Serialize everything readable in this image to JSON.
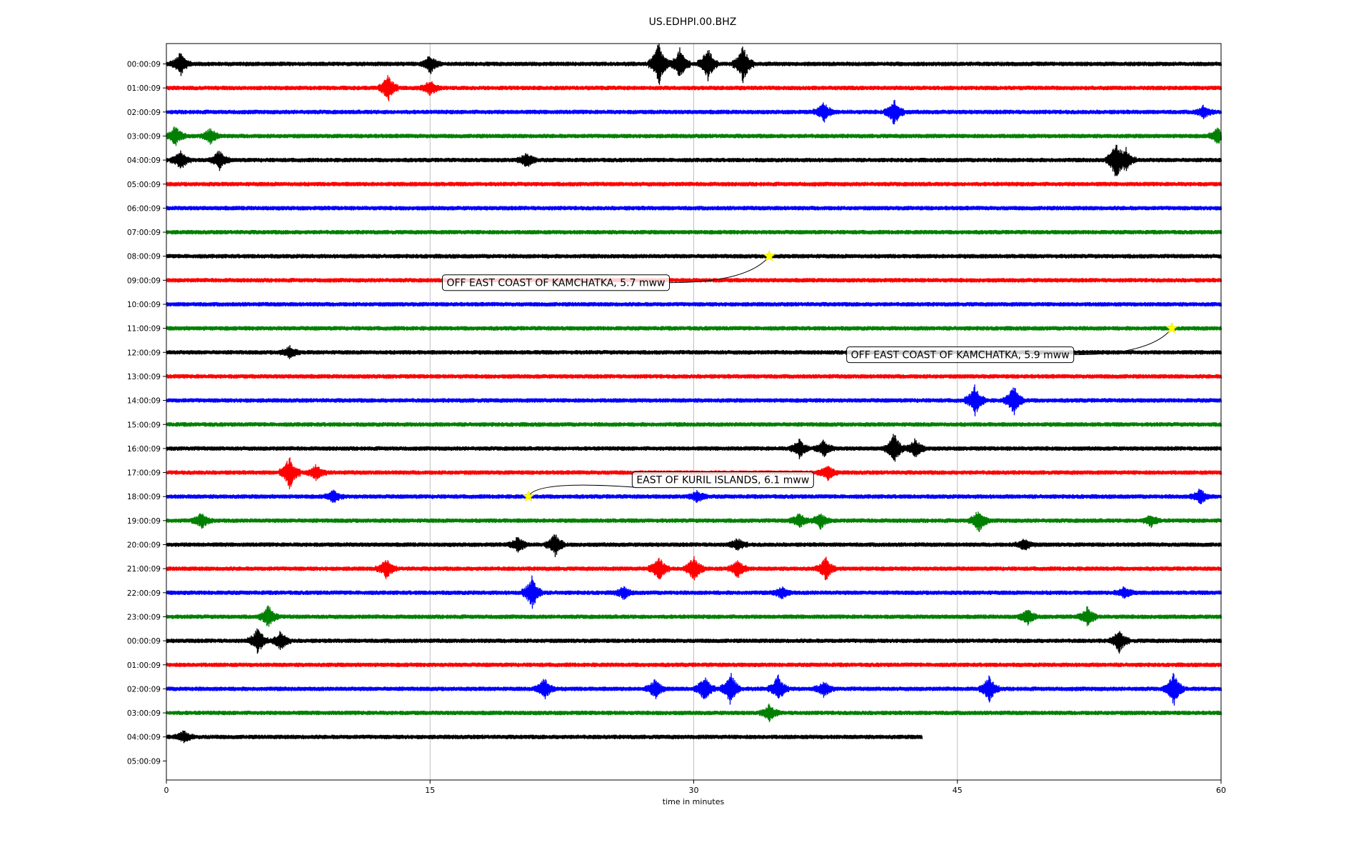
{
  "chart_data": {
    "type": "line",
    "title": "US.EDHPI.00.BHZ",
    "xlabel": "time in minutes",
    "ylabel": "",
    "xlim": [
      0,
      60
    ],
    "x_ticks": [
      0,
      15,
      30,
      45,
      60
    ],
    "grid": "vertical",
    "trace_colors": [
      "#000000",
      "#ff0000",
      "#0000ff",
      "#008000"
    ],
    "rows": [
      {
        "label": "00:00:09",
        "end_minute": 60
      },
      {
        "label": "01:00:09",
        "end_minute": 60
      },
      {
        "label": "02:00:09",
        "end_minute": 60
      },
      {
        "label": "03:00:09",
        "end_minute": 60
      },
      {
        "label": "04:00:09",
        "end_minute": 60
      },
      {
        "label": "05:00:09",
        "end_minute": 60
      },
      {
        "label": "06:00:09",
        "end_minute": 60
      },
      {
        "label": "07:00:09",
        "end_minute": 60
      },
      {
        "label": "08:00:09",
        "end_minute": 60
      },
      {
        "label": "09:00:09",
        "end_minute": 60
      },
      {
        "label": "10:00:09",
        "end_minute": 60
      },
      {
        "label": "11:00:09",
        "end_minute": 60
      },
      {
        "label": "12:00:09",
        "end_minute": 60
      },
      {
        "label": "13:00:09",
        "end_minute": 60
      },
      {
        "label": "14:00:09",
        "end_minute": 60
      },
      {
        "label": "15:00:09",
        "end_minute": 60
      },
      {
        "label": "16:00:09",
        "end_minute": 60
      },
      {
        "label": "17:00:09",
        "end_minute": 60
      },
      {
        "label": "18:00:09",
        "end_minute": 60
      },
      {
        "label": "19:00:09",
        "end_minute": 60
      },
      {
        "label": "20:00:09",
        "end_minute": 60
      },
      {
        "label": "21:00:09",
        "end_minute": 60
      },
      {
        "label": "22:00:09",
        "end_minute": 60
      },
      {
        "label": "23:00:09",
        "end_minute": 60
      },
      {
        "label": "00:00:09",
        "end_minute": 60
      },
      {
        "label": "01:00:09",
        "end_minute": 60
      },
      {
        "label": "02:00:09",
        "end_minute": 60
      },
      {
        "label": "03:00:09",
        "end_minute": 60
      },
      {
        "label": "04:00:09",
        "end_minute": 43
      },
      {
        "label": "05:00:09",
        "end_minute": 0
      }
    ],
    "bursts": [
      {
        "row": 0,
        "minute": 0.8,
        "amp": 0.6
      },
      {
        "row": 0,
        "minute": 15,
        "amp": 0.5
      },
      {
        "row": 0,
        "minute": 28,
        "amp": 1.2
      },
      {
        "row": 0,
        "minute": 29.2,
        "amp": 0.8
      },
      {
        "row": 0,
        "minute": 30.8,
        "amp": 0.9
      },
      {
        "row": 0,
        "minute": 32.8,
        "amp": 1.0
      },
      {
        "row": 1,
        "minute": 12.6,
        "amp": 0.7
      },
      {
        "row": 1,
        "minute": 15,
        "amp": 0.4
      },
      {
        "row": 2,
        "minute": 37.4,
        "amp": 0.5
      },
      {
        "row": 2,
        "minute": 41.4,
        "amp": 0.7
      },
      {
        "row": 2,
        "minute": 59,
        "amp": 0.3
      },
      {
        "row": 3,
        "minute": 0.5,
        "amp": 0.5
      },
      {
        "row": 3,
        "minute": 2.5,
        "amp": 0.4
      },
      {
        "row": 3,
        "minute": 59.8,
        "amp": 0.4
      },
      {
        "row": 4,
        "minute": 0.8,
        "amp": 0.5
      },
      {
        "row": 4,
        "minute": 3,
        "amp": 0.5
      },
      {
        "row": 4,
        "minute": 20.5,
        "amp": 0.4
      },
      {
        "row": 4,
        "minute": 54,
        "amp": 1.0
      },
      {
        "row": 4,
        "minute": 54.6,
        "amp": 0.5
      },
      {
        "row": 12,
        "minute": 7,
        "amp": 0.3
      },
      {
        "row": 14,
        "minute": 46,
        "amp": 0.8
      },
      {
        "row": 14,
        "minute": 48.2,
        "amp": 0.8
      },
      {
        "row": 16,
        "minute": 36,
        "amp": 0.5
      },
      {
        "row": 16,
        "minute": 37.4,
        "amp": 0.4
      },
      {
        "row": 16,
        "minute": 41.4,
        "amp": 0.8
      },
      {
        "row": 16,
        "minute": 42.6,
        "amp": 0.5
      },
      {
        "row": 17,
        "minute": 7,
        "amp": 0.9
      },
      {
        "row": 17,
        "minute": 8.5,
        "amp": 0.4
      },
      {
        "row": 17,
        "minute": 37.6,
        "amp": 0.4
      },
      {
        "row": 18,
        "minute": 9.5,
        "amp": 0.3
      },
      {
        "row": 18,
        "minute": 30.2,
        "amp": 0.3
      },
      {
        "row": 18,
        "minute": 58.8,
        "amp": 0.4
      },
      {
        "row": 19,
        "minute": 2,
        "amp": 0.4
      },
      {
        "row": 19,
        "minute": 36,
        "amp": 0.4
      },
      {
        "row": 19,
        "minute": 37.2,
        "amp": 0.4
      },
      {
        "row": 19,
        "minute": 46.2,
        "amp": 0.6
      },
      {
        "row": 19,
        "minute": 56,
        "amp": 0.3
      },
      {
        "row": 20,
        "minute": 20,
        "amp": 0.4
      },
      {
        "row": 20,
        "minute": 22.1,
        "amp": 0.6
      },
      {
        "row": 20,
        "minute": 32.5,
        "amp": 0.3
      },
      {
        "row": 20,
        "minute": 48.8,
        "amp": 0.3
      },
      {
        "row": 21,
        "minute": 12.5,
        "amp": 0.5
      },
      {
        "row": 21,
        "minute": 28,
        "amp": 0.7
      },
      {
        "row": 21,
        "minute": 30,
        "amp": 0.7
      },
      {
        "row": 21,
        "minute": 32.5,
        "amp": 0.5
      },
      {
        "row": 21,
        "minute": 37.5,
        "amp": 0.6
      },
      {
        "row": 22,
        "minute": 20.8,
        "amp": 0.9
      },
      {
        "row": 22,
        "minute": 26,
        "amp": 0.3
      },
      {
        "row": 22,
        "minute": 35,
        "amp": 0.3
      },
      {
        "row": 22,
        "minute": 54.5,
        "amp": 0.3
      },
      {
        "row": 23,
        "minute": 5.8,
        "amp": 0.6
      },
      {
        "row": 23,
        "minute": 49,
        "amp": 0.4
      },
      {
        "row": 23,
        "minute": 52.4,
        "amp": 0.5
      },
      {
        "row": 24,
        "minute": 5.2,
        "amp": 0.7
      },
      {
        "row": 24,
        "minute": 6.5,
        "amp": 0.5
      },
      {
        "row": 24,
        "minute": 54.2,
        "amp": 0.6
      },
      {
        "row": 26,
        "minute": 21.5,
        "amp": 0.6
      },
      {
        "row": 26,
        "minute": 27.8,
        "amp": 0.5
      },
      {
        "row": 26,
        "minute": 30.6,
        "amp": 0.7
      },
      {
        "row": 26,
        "minute": 32.1,
        "amp": 0.9
      },
      {
        "row": 26,
        "minute": 34.8,
        "amp": 0.7
      },
      {
        "row": 26,
        "minute": 37.4,
        "amp": 0.4
      },
      {
        "row": 26,
        "minute": 46.8,
        "amp": 0.7
      },
      {
        "row": 26,
        "minute": 57.3,
        "amp": 0.9
      },
      {
        "row": 27,
        "minute": 34.3,
        "amp": 0.4
      },
      {
        "row": 28,
        "minute": 1,
        "amp": 0.3
      }
    ],
    "events": [
      {
        "row": 8,
        "minute": 34.3,
        "label": "OFF EAST COAST OF KAMCHATKA, 5.7 mww",
        "label_minute": 15.7,
        "label_row": 9.1
      },
      {
        "row": 11,
        "minute": 57.2,
        "label": "OFF EAST COAST OF KAMCHATKA, 5.9 mww",
        "label_minute": 38.7,
        "label_row": 12.1
      },
      {
        "row": 18,
        "minute": 20.6,
        "label": "EAST OF KURIL ISLANDS, 6.1 mww",
        "label_minute": 26.5,
        "label_row": 17.3
      }
    ]
  }
}
